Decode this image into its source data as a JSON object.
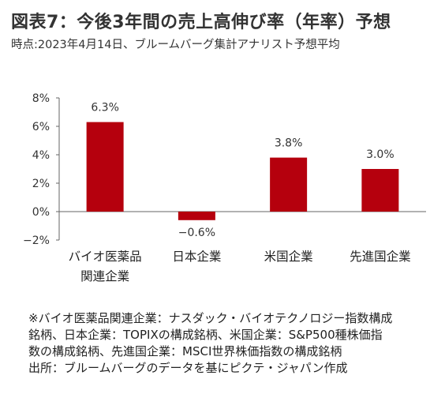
{
  "title": "図表7：今後3年間の売上高伸び率（年率）予想",
  "subtitle": "時点:2023年4月14日、ブルームバーグ集計アナリスト予想平均",
  "chart_data": {
    "type": "bar",
    "categories": [
      "バイオ医薬品関連企業",
      "日本企業",
      "米国企業",
      "先進国企業"
    ],
    "category_lines": [
      [
        "バイオ医薬品",
        "関連企業"
      ],
      [
        "日本企業"
      ],
      [
        "米国企業"
      ],
      [
        "先進国企業"
      ]
    ],
    "values": [
      6.3,
      -0.6,
      3.8,
      3.0
    ],
    "value_labels": [
      "6.3%",
      "−0.6%",
      "3.8%",
      "3.0%"
    ],
    "y_ticks": [
      8,
      6,
      4,
      2,
      0,
      -2
    ],
    "y_tick_labels": [
      "8%",
      "6%",
      "4%",
      "2%",
      "0%",
      "−2%"
    ],
    "ylim": [
      -2,
      8
    ],
    "bar_color": "#b5000d",
    "grid": false
  },
  "notes": [
    "※バイオ医薬品関連企業：ナスダック・バイオテクノロジー指数構成",
    "銘柄、日本企業：TOPIXの構成銘柄、米国企業：S&P500種株価指",
    "数の構成銘柄、先進国企業：MSCI世界株価指数の構成銘柄",
    "出所：ブルームバーグのデータを基にピクテ・ジャパン作成"
  ]
}
